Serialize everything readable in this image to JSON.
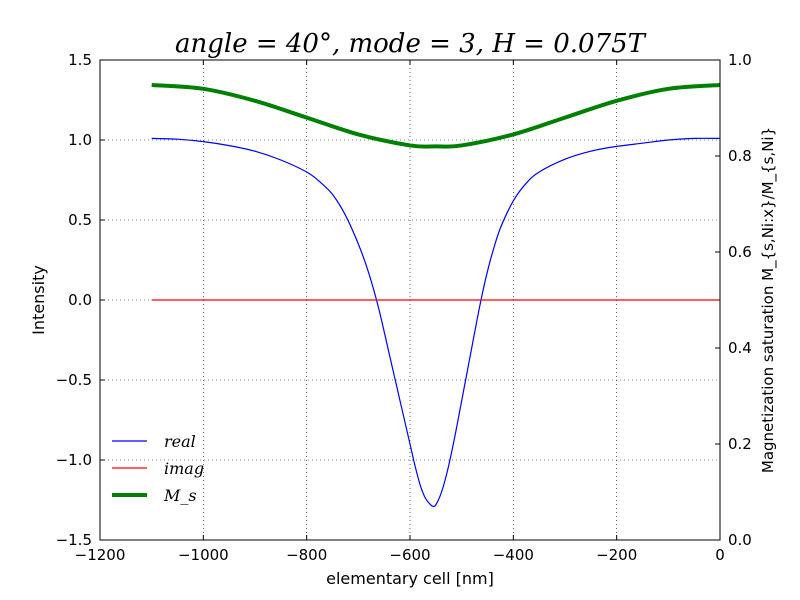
{
  "chart_data": {
    "type": "line",
    "title": "angle = 40°, mode = 3, H = 0.075T",
    "xlabel": "elementary cell [nm]",
    "ylabel": "Intensity",
    "y2label": "Magnetization saturation M_{s,Ni:x}/M_{s,Ni}",
    "xlim": [
      -1200,
      0
    ],
    "ylim": [
      -1.5,
      1.5
    ],
    "y2lim": [
      0.0,
      1.0
    ],
    "xticks": [
      "−1200",
      "−1000",
      "−800",
      "−600",
      "−400",
      "−200",
      "0"
    ],
    "yticks": [
      "−1.5",
      "−1.0",
      "−0.5",
      "0.0",
      "0.5",
      "1.0",
      "1.5"
    ],
    "y2ticks": [
      "0.0",
      "0.2",
      "0.4",
      "0.6",
      "0.8",
      "1.0"
    ],
    "grid": true,
    "legend_position": "lower-left",
    "series": [
      {
        "name": "real",
        "color": "#0000ff",
        "axis": "left",
        "x": [
          -1100,
          -1050,
          -1000,
          -950,
          -900,
          -850,
          -800,
          -775,
          -750,
          -725,
          -700,
          -680,
          -660,
          -640,
          -620,
          -600,
          -590,
          -580,
          -570,
          -560,
          -555,
          -550,
          -540,
          -530,
          -520,
          -510,
          -500,
          -490,
          -480,
          -470,
          -460,
          -450,
          -440,
          -425,
          -400,
          -375,
          -350,
          -300,
          -250,
          -200,
          -150,
          -100,
          -50,
          0
        ],
        "y": [
          1.01,
          1.005,
          0.99,
          0.965,
          0.93,
          0.875,
          0.8,
          0.74,
          0.66,
          0.53,
          0.35,
          0.17,
          -0.06,
          -0.34,
          -0.62,
          -0.9,
          -1.04,
          -1.16,
          -1.24,
          -1.28,
          -1.29,
          -1.28,
          -1.21,
          -1.1,
          -0.96,
          -0.8,
          -0.63,
          -0.46,
          -0.29,
          -0.12,
          0.04,
          0.18,
          0.3,
          0.45,
          0.62,
          0.73,
          0.8,
          0.88,
          0.93,
          0.96,
          0.98,
          1.0,
          1.01,
          1.01
        ]
      },
      {
        "name": "imag",
        "color": "#ff0000",
        "axis": "left",
        "x": [
          -1100,
          -800,
          -600,
          -400,
          -200,
          0
        ],
        "y": [
          0.0,
          0.0,
          0.0,
          0.0,
          0.0,
          0.0
        ]
      },
      {
        "name": "M_s",
        "color": "#008000",
        "axis": "right",
        "x": [
          -1100,
          -1000,
          -900,
          -800,
          -700,
          -600,
          -550,
          -500,
          -400,
          -300,
          -200,
          -100,
          0
        ],
        "y": [
          0.948,
          0.94,
          0.915,
          0.88,
          0.845,
          0.822,
          0.82,
          0.822,
          0.845,
          0.88,
          0.915,
          0.94,
          0.948
        ]
      }
    ]
  }
}
